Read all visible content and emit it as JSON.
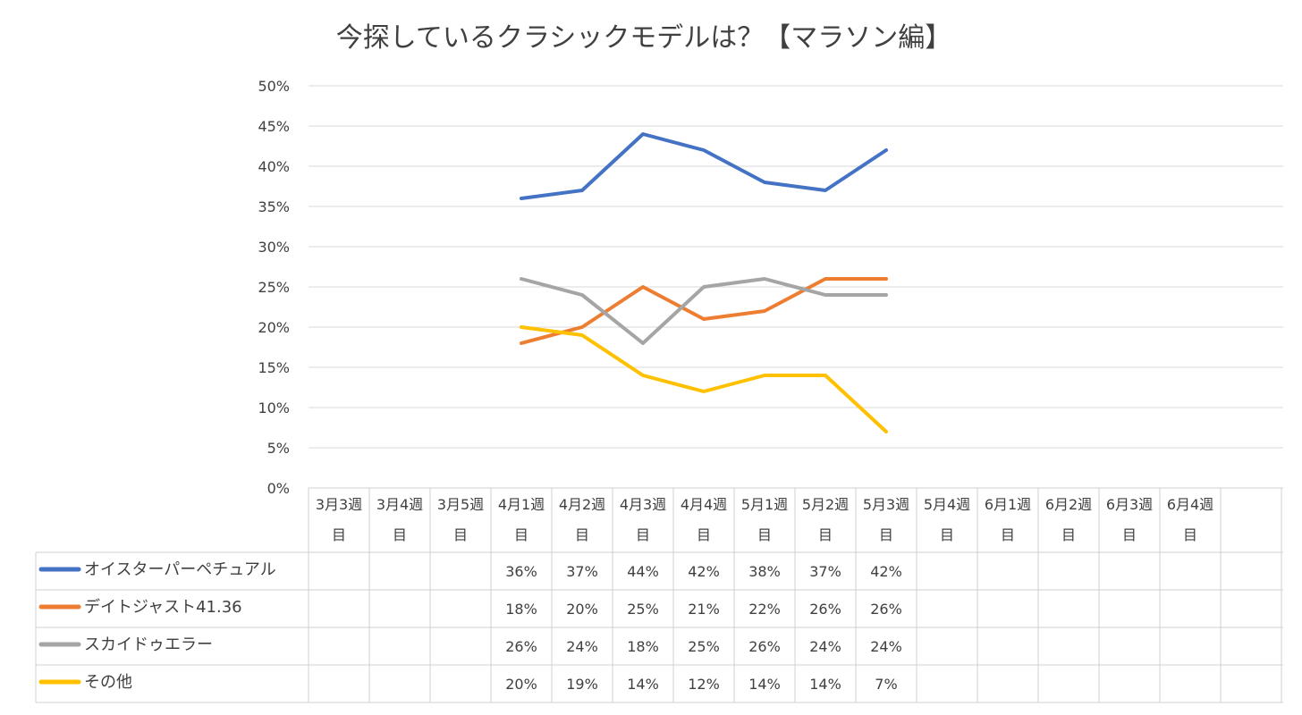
{
  "chart_data": {
    "type": "line",
    "title": "今探しているクラシックモデルは？【マラソン編】",
    "xlabel": "",
    "ylabel": "",
    "ylim": [
      0,
      50
    ],
    "yticks": [
      0,
      5,
      10,
      15,
      20,
      25,
      30,
      35,
      40,
      45,
      50
    ],
    "y_tick_labels": [
      "0%",
      "5%",
      "10%",
      "15%",
      "20%",
      "25%",
      "30%",
      "35%",
      "40%",
      "45%",
      "50%"
    ],
    "grid": true,
    "legend_position": "bottom-left (data table)",
    "categories": [
      [
        "3月3週",
        "目"
      ],
      [
        "3月4週",
        "目"
      ],
      [
        "3月5週",
        "目"
      ],
      [
        "4月1週",
        "目"
      ],
      [
        "4月2週",
        "目"
      ],
      [
        "4月3週",
        "目"
      ],
      [
        "4月4週",
        "目"
      ],
      [
        "5月1週",
        "目"
      ],
      [
        "5月2週",
        "目"
      ],
      [
        "5月3週",
        "目"
      ],
      [
        "5月4週",
        "目"
      ],
      [
        "6月1週",
        "目"
      ],
      [
        "6月2週",
        "目"
      ],
      [
        "6月3週",
        "目"
      ],
      [
        "6月4週",
        "目"
      ]
    ],
    "series": [
      {
        "name": "オイスターパーペチュアル",
        "color": "#4472C4",
        "values": [
          null,
          null,
          null,
          36,
          37,
          44,
          42,
          38,
          37,
          42,
          null,
          null,
          null,
          null,
          null
        ],
        "labels": [
          "",
          "",
          "",
          "36%",
          "37%",
          "44%",
          "42%",
          "38%",
          "37%",
          "42%",
          "",
          "",
          "",
          "",
          ""
        ]
      },
      {
        "name": "デイトジャスト41.36",
        "color": "#ED7D31",
        "values": [
          null,
          null,
          null,
          18,
          20,
          25,
          21,
          22,
          26,
          26,
          null,
          null,
          null,
          null,
          null
        ],
        "labels": [
          "",
          "",
          "",
          "18%",
          "20%",
          "25%",
          "21%",
          "22%",
          "26%",
          "26%",
          "",
          "",
          "",
          "",
          ""
        ]
      },
      {
        "name": "スカイドゥエラー",
        "color": "#A5A5A5",
        "values": [
          null,
          null,
          null,
          26,
          24,
          18,
          25,
          26,
          24,
          24,
          null,
          null,
          null,
          null,
          null
        ],
        "labels": [
          "",
          "",
          "",
          "26%",
          "24%",
          "18%",
          "25%",
          "26%",
          "24%",
          "24%",
          "",
          "",
          "",
          "",
          ""
        ]
      },
      {
        "name": "その他",
        "color": "#FFC000",
        "values": [
          null,
          null,
          null,
          20,
          19,
          14,
          12,
          14,
          14,
          7,
          null,
          null,
          null,
          null,
          null
        ],
        "labels": [
          "",
          "",
          "",
          "20%",
          "19%",
          "14%",
          "12%",
          "14%",
          "14%",
          "7%",
          "",
          "",
          "",
          "",
          ""
        ]
      }
    ]
  }
}
